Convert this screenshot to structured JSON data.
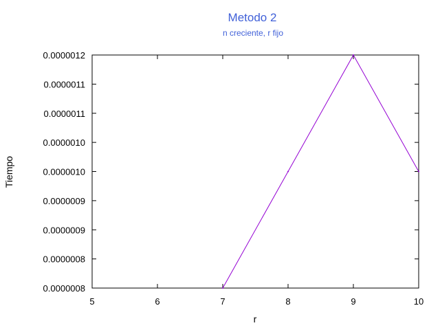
{
  "chart_data": {
    "type": "line",
    "title": "Metodo 2",
    "subtitle": "n creciente, r fijo",
    "xlabel": "r",
    "ylabel": "Tiempo",
    "xlim": [
      5,
      10
    ],
    "ylim": [
      8e-07,
      1.2e-06
    ],
    "x_ticks": [
      "5",
      "6",
      "7",
      "8",
      "9",
      "10"
    ],
    "y_ticks": [
      "0.0000008",
      "0.0000008",
      "0.0000009",
      "0.0000009",
      "0.0000010",
      "0.0000010",
      "0.0000011",
      "0.0000011",
      "0.0000012"
    ],
    "grid": false,
    "series": [
      {
        "x": [
          7,
          8,
          9,
          10
        ],
        "y": [
          8e-07,
          1e-06,
          1.2e-06,
          1e-06
        ]
      }
    ],
    "colors": {
      "title": "#4060d8",
      "line": "#9400d3"
    }
  }
}
